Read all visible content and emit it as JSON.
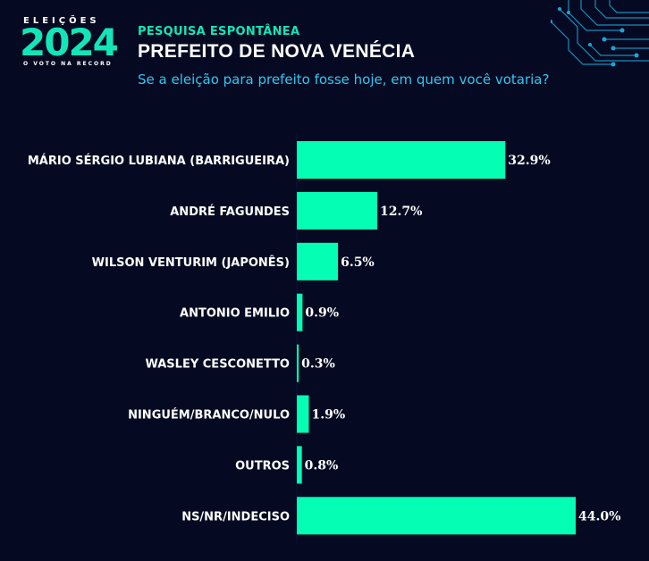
{
  "header": {
    "logo_top": "ELEIÇÕES",
    "logo_year": "2024",
    "logo_bottom": "O VOTO NA RECORD",
    "eyebrow": "PESQUISA ESPONTÂNEA",
    "title": "PREFEITO DE NOVA VENÉCIA",
    "subtitle": "Se a eleição para prefeito fosse hoje, em quem você votaria?"
  },
  "colors": {
    "background": "#050a22",
    "bar": "#04ffb4",
    "accent": "#12e6b8",
    "subtitle": "#31c7f2",
    "text": "#ffffff"
  },
  "chart_data": {
    "type": "bar",
    "orientation": "horizontal",
    "categories": [
      "MÁRIO SÉRGIO LUBIANA (BARRIGUEIRA)",
      "ANDRÉ FAGUNDES",
      "WILSON VENTURIM (JAPONÊS)",
      "ANTONIO EMILIO",
      "WASLEY CESCONETTO",
      "NINGUÉM/BRANCO/NULO",
      "OUTROS",
      "NS/NR/INDECISO"
    ],
    "values": [
      32.9,
      12.7,
      6.5,
      0.9,
      0.3,
      1.9,
      0.8,
      44.0
    ],
    "value_labels": [
      "32.9%",
      "12.7%",
      "6.5%",
      "0.9%",
      "0.3%",
      "1.9%",
      "0.8%",
      "44.0%"
    ],
    "xlim": [
      0,
      44.0
    ],
    "grid": false,
    "legend": "none"
  }
}
